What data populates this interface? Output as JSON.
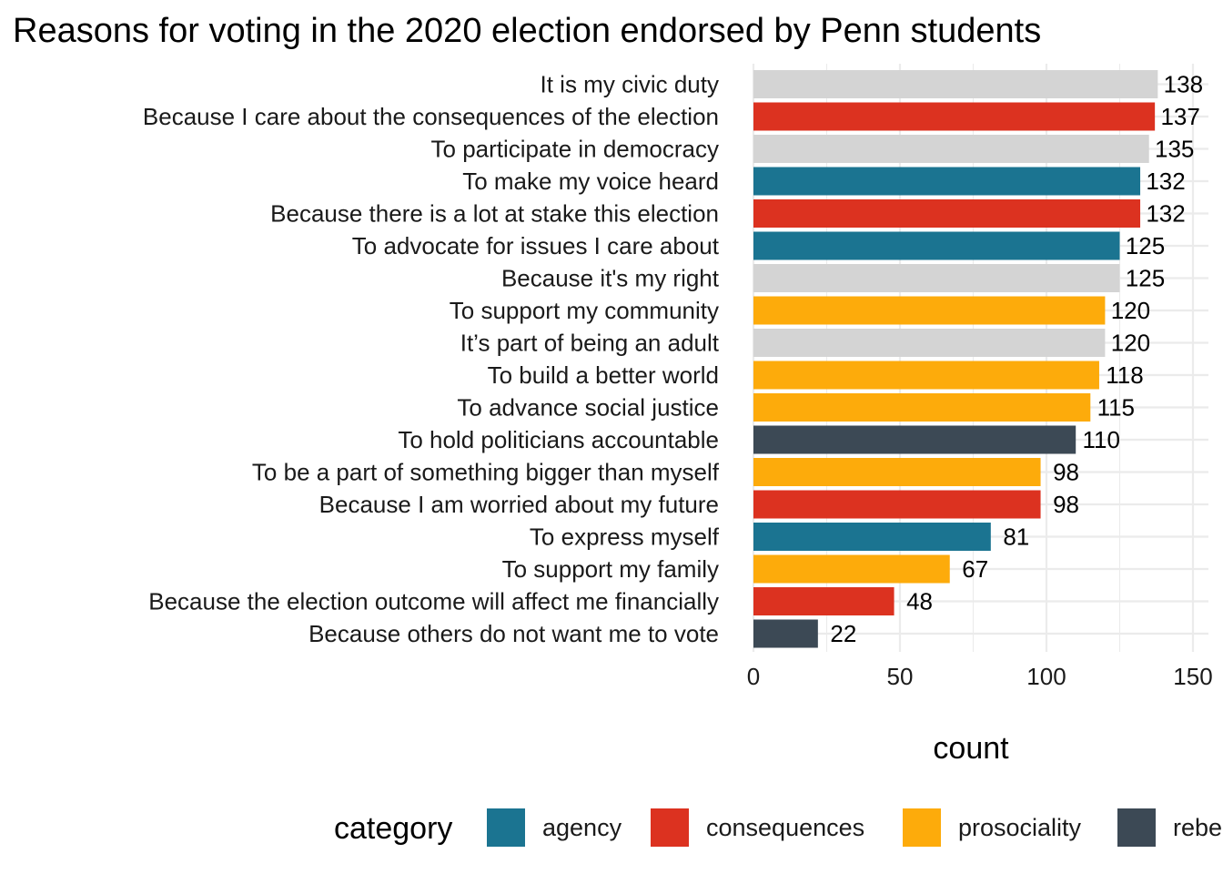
{
  "chart_data": {
    "type": "bar",
    "orientation": "horizontal",
    "title": "Reasons for voting in the 2020 election endorsed by Penn students",
    "xlabel": "count",
    "ylabel": "",
    "xlim": [
      0,
      150
    ],
    "x_ticks": [
      "0",
      "50",
      "100",
      "150"
    ],
    "grid": true,
    "legend_position": "bottom",
    "legend_title": "category",
    "legend": [
      {
        "name": "agency",
        "color": "#1b7491"
      },
      {
        "name": "consequences",
        "color": "#dc3220"
      },
      {
        "name": "prosociality",
        "color": "#fdab0b"
      },
      {
        "name": "rebellion",
        "color": "#3c4955"
      }
    ],
    "neutral_color": "#d4d4d4",
    "bars": [
      {
        "label": "It is my civic duty",
        "value": 138,
        "category": ""
      },
      {
        "label": "Because I care about the consequences of the election",
        "value": 137,
        "category": "consequences"
      },
      {
        "label": "To participate in democracy",
        "value": 135,
        "category": ""
      },
      {
        "label": "To make my voice heard",
        "value": 132,
        "category": "agency"
      },
      {
        "label": "Because there is a lot at stake this election",
        "value": 132,
        "category": "consequences"
      },
      {
        "label": "To advocate for issues I care about",
        "value": 125,
        "category": "agency"
      },
      {
        "label": "Because it's my right",
        "value": 125,
        "category": ""
      },
      {
        "label": "To support my community",
        "value": 120,
        "category": "prosociality"
      },
      {
        "label": "It’s part of being an adult",
        "value": 120,
        "category": ""
      },
      {
        "label": "To build a better world",
        "value": 118,
        "category": "prosociality"
      },
      {
        "label": "To advance social justice",
        "value": 115,
        "category": "prosociality"
      },
      {
        "label": "To hold politicians accountable",
        "value": 110,
        "category": "rebellion"
      },
      {
        "label": "To be a part of something bigger than myself",
        "value": 98,
        "category": "prosociality"
      },
      {
        "label": "Because I am worried about my future",
        "value": 98,
        "category": "consequences"
      },
      {
        "label": "To express myself",
        "value": 81,
        "category": "agency"
      },
      {
        "label": "To support my family",
        "value": 67,
        "category": "prosociality"
      },
      {
        "label": "Because the election outcome will affect me financially",
        "value": 48,
        "category": "consequences"
      },
      {
        "label": "Because others do not want me to vote",
        "value": 22,
        "category": "rebellion"
      }
    ]
  }
}
